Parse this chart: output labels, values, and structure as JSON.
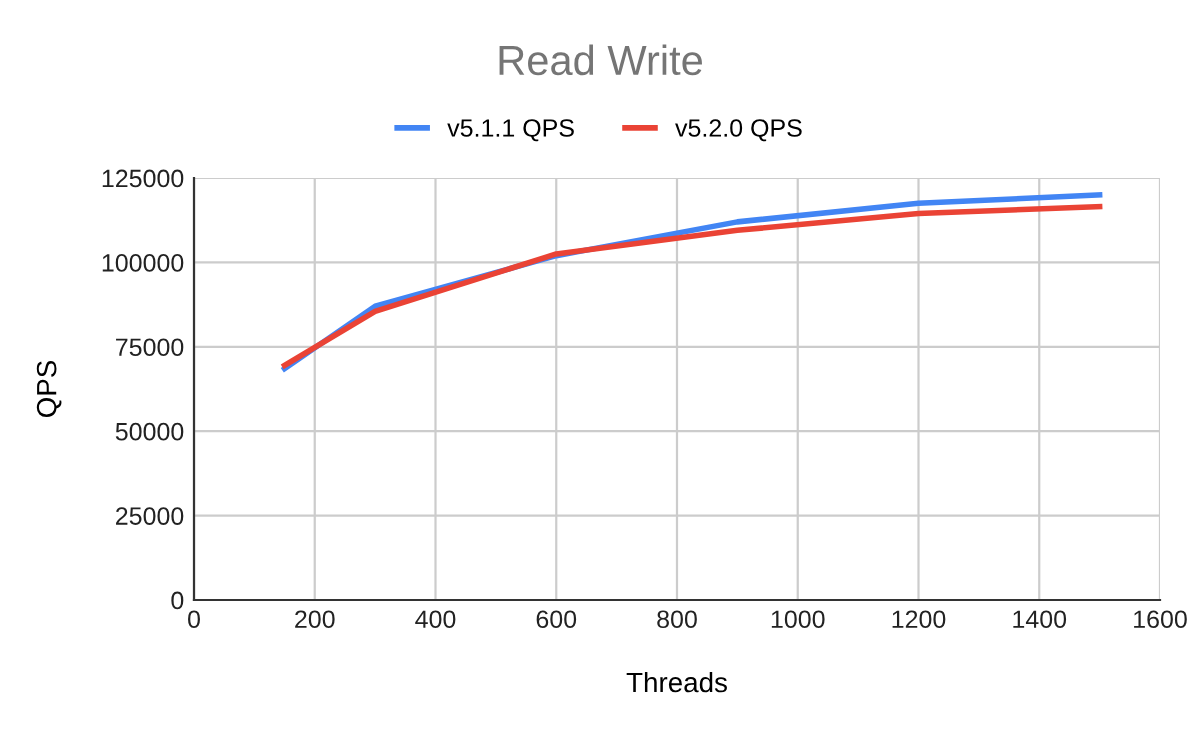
{
  "chart_data": {
    "type": "line",
    "title": "Read Write",
    "xlabel": "Threads",
    "ylabel": "QPS",
    "x": [
      150,
      300,
      600,
      900,
      1200,
      1500
    ],
    "series": [
      {
        "name": "v5.1.1 QPS",
        "color": "#4285f4",
        "values": [
          68500,
          87000,
          102000,
          112000,
          117500,
          120000
        ]
      },
      {
        "name": "v5.2.0 QPS",
        "color": "#ea4335",
        "values": [
          69500,
          85500,
          102500,
          109500,
          114500,
          116500
        ]
      }
    ],
    "xlim": [
      0,
      1600
    ],
    "xticks": [
      0,
      200,
      400,
      600,
      800,
      1000,
      1200,
      1400,
      1600
    ],
    "ylim": [
      0,
      125000
    ],
    "yticks": [
      0,
      25000,
      50000,
      75000,
      100000,
      125000
    ],
    "grid": true,
    "legend": "top",
    "marker": "none",
    "line_style": "solid"
  }
}
